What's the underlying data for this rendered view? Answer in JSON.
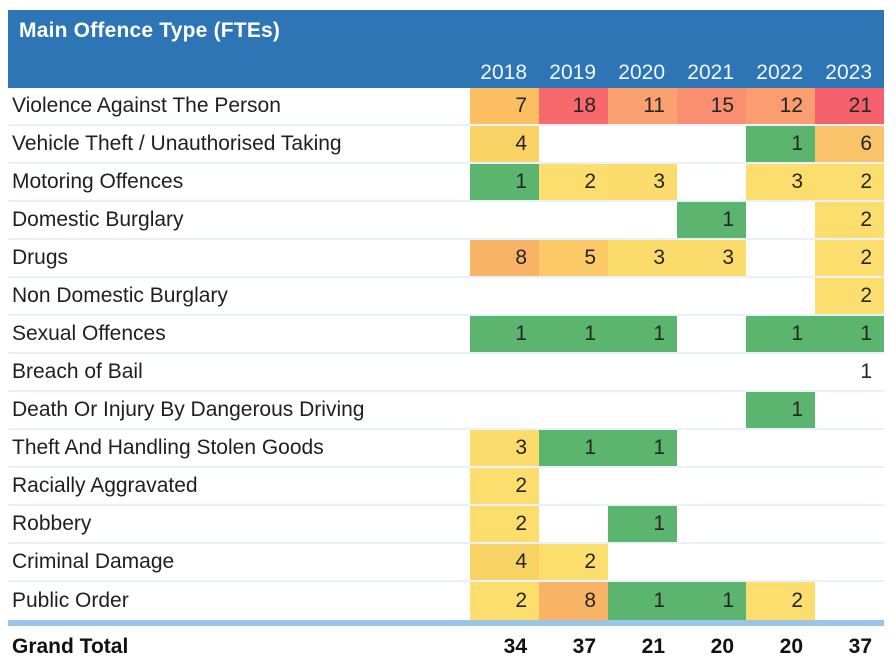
{
  "header": {
    "title": "Main Offence Type (FTEs)",
    "years": [
      "2018",
      "2019",
      "2020",
      "2021",
      "2022",
      "2023"
    ]
  },
  "rows": [
    {
      "label": "Violence Against The Person",
      "values": [
        "7",
        "18",
        "11",
        "15",
        "12",
        "21"
      ],
      "colors": [
        "#FBBE61",
        "#F7696C",
        "#FBA16F",
        "#F98F70",
        "#FA9E72",
        "#F4606C"
      ]
    },
    {
      "label": "Vehicle Theft / Unauthorised Taking",
      "values": [
        "4",
        "",
        "",
        "",
        "1",
        "6"
      ],
      "colors": [
        "#FAD366",
        "",
        "",
        "",
        "#5BB56F",
        "#F9C469"
      ]
    },
    {
      "label": "Motoring Offences",
      "values": [
        "1",
        "2",
        "3",
        "",
        "3",
        "2"
      ],
      "colors": [
        "#5BB56F",
        "#FBDE6E",
        "#FBDB6B",
        "",
        "#FBDE6E",
        "#FBDE6E"
      ]
    },
    {
      "label": "Domestic Burglary",
      "values": [
        "",
        "",
        "",
        "1",
        "",
        "2"
      ],
      "colors": [
        "",
        "",
        "",
        "#5BB56F",
        "",
        "#FBDE6E"
      ]
    },
    {
      "label": "Drugs",
      "values": [
        "8",
        "5",
        "3",
        "3",
        "",
        "2"
      ],
      "colors": [
        "#F9B367",
        "#FBCA66",
        "#FBDB6B",
        "#FBDB6B",
        "",
        "#FBDE6E"
      ]
    },
    {
      "label": "Non Domestic Burglary",
      "values": [
        "",
        "",
        "",
        "",
        "",
        "2"
      ],
      "colors": [
        "",
        "",
        "",
        "",
        "",
        "#FBDE6E"
      ]
    },
    {
      "label": "Sexual Offences",
      "values": [
        "1",
        "1",
        "1",
        "",
        "1",
        "1"
      ],
      "colors": [
        "#5BB56F",
        "#5BB56F",
        "#5BB56F",
        "",
        "#5BB56F",
        "#5BB56F"
      ]
    },
    {
      "label": "Breach of Bail",
      "values": [
        "",
        "",
        "",
        "",
        "",
        "1"
      ],
      "colors": [
        "",
        "",
        "",
        "",
        "",
        ""
      ]
    },
    {
      "label": "Death Or Injury By Dangerous Driving",
      "values": [
        "",
        "",
        "",
        "",
        "1",
        ""
      ],
      "colors": [
        "",
        "",
        "",
        "",
        "#5BB56F",
        ""
      ]
    },
    {
      "label": "Theft And Handling Stolen Goods",
      "values": [
        "3",
        "1",
        "1",
        "",
        "",
        ""
      ],
      "colors": [
        "#FBDB6B",
        "#5BB56F",
        "#5BB56F",
        "",
        "",
        ""
      ]
    },
    {
      "label": "Racially Aggravated",
      "values": [
        "2",
        "",
        "",
        "",
        "",
        ""
      ],
      "colors": [
        "#FBDE6E",
        "",
        "",
        "",
        "",
        ""
      ]
    },
    {
      "label": "Robbery",
      "values": [
        "2",
        "",
        "1",
        "",
        "",
        ""
      ],
      "colors": [
        "#FBDE6E",
        "",
        "#5BB56F",
        "",
        "",
        ""
      ]
    },
    {
      "label": "Criminal Damage",
      "values": [
        "4",
        "2",
        "",
        "",
        "",
        ""
      ],
      "colors": [
        "#FAD366",
        "#FBDE6E",
        "",
        "",
        "",
        ""
      ]
    },
    {
      "label": "Public Order",
      "values": [
        "2",
        "8",
        "1",
        "1",
        "2",
        ""
      ],
      "colors": [
        "#FBDE6E",
        "#F9B367",
        "#5BB56F",
        "#5BB56F",
        "#FBDE6E",
        ""
      ]
    }
  ],
  "grand_total": {
    "label": "Grand Total",
    "values": [
      "34",
      "37",
      "21",
      "20",
      "20",
      "37"
    ]
  },
  "palette": {
    "header_bg": "#2E75B5",
    "header_text": "#FFFFFF",
    "row_divider": "#E9F2FA",
    "total_divider_bar": "#9DC3E6",
    "heat_low_green": "#5BB56F",
    "heat_mid_yellow": "#FBDE6E",
    "heat_high_red": "#F7696C"
  },
  "chart_data": {
    "type": "heatmap",
    "title": "Main Offence Type (FTEs)",
    "columns": [
      "2018",
      "2019",
      "2020",
      "2021",
      "2022",
      "2023"
    ],
    "row_names": [
      "Violence Against The Person",
      "Vehicle Theft / Unauthorised Taking",
      "Motoring Offences",
      "Domestic Burglary",
      "Drugs",
      "Non Domestic Burglary",
      "Sexual Offences",
      "Breach of Bail",
      "Death Or Injury By Dangerous Driving",
      "Theft And Handling Stolen Goods",
      "Racially Aggravated",
      "Robbery",
      "Criminal Damage",
      "Public Order"
    ],
    "values": [
      [
        7,
        18,
        11,
        15,
        12,
        21
      ],
      [
        4,
        null,
        null,
        null,
        1,
        6
      ],
      [
        1,
        2,
        3,
        null,
        3,
        2
      ],
      [
        null,
        null,
        null,
        1,
        null,
        2
      ],
      [
        8,
        5,
        3,
        3,
        null,
        2
      ],
      [
        null,
        null,
        null,
        null,
        null,
        2
      ],
      [
        1,
        1,
        1,
        null,
        1,
        1
      ],
      [
        null,
        null,
        null,
        null,
        null,
        1
      ],
      [
        null,
        null,
        null,
        null,
        1,
        null
      ],
      [
        3,
        1,
        1,
        null,
        null,
        null
      ],
      [
        2,
        null,
        null,
        null,
        null,
        null
      ],
      [
        2,
        null,
        1,
        null,
        null,
        null
      ],
      [
        4,
        2,
        null,
        null,
        null,
        null
      ],
      [
        2,
        8,
        1,
        1,
        2,
        null
      ]
    ],
    "grand_total": [
      34,
      37,
      21,
      20,
      20,
      37
    ],
    "color_scale": "3-color scale: low=green #5BB56F, mid=yellow #FBDE6E, high=red #F7696C; blank cells unformatted (Breach of Bail 2023 value 1 has no fill)",
    "value_range": [
      1,
      21
    ]
  }
}
